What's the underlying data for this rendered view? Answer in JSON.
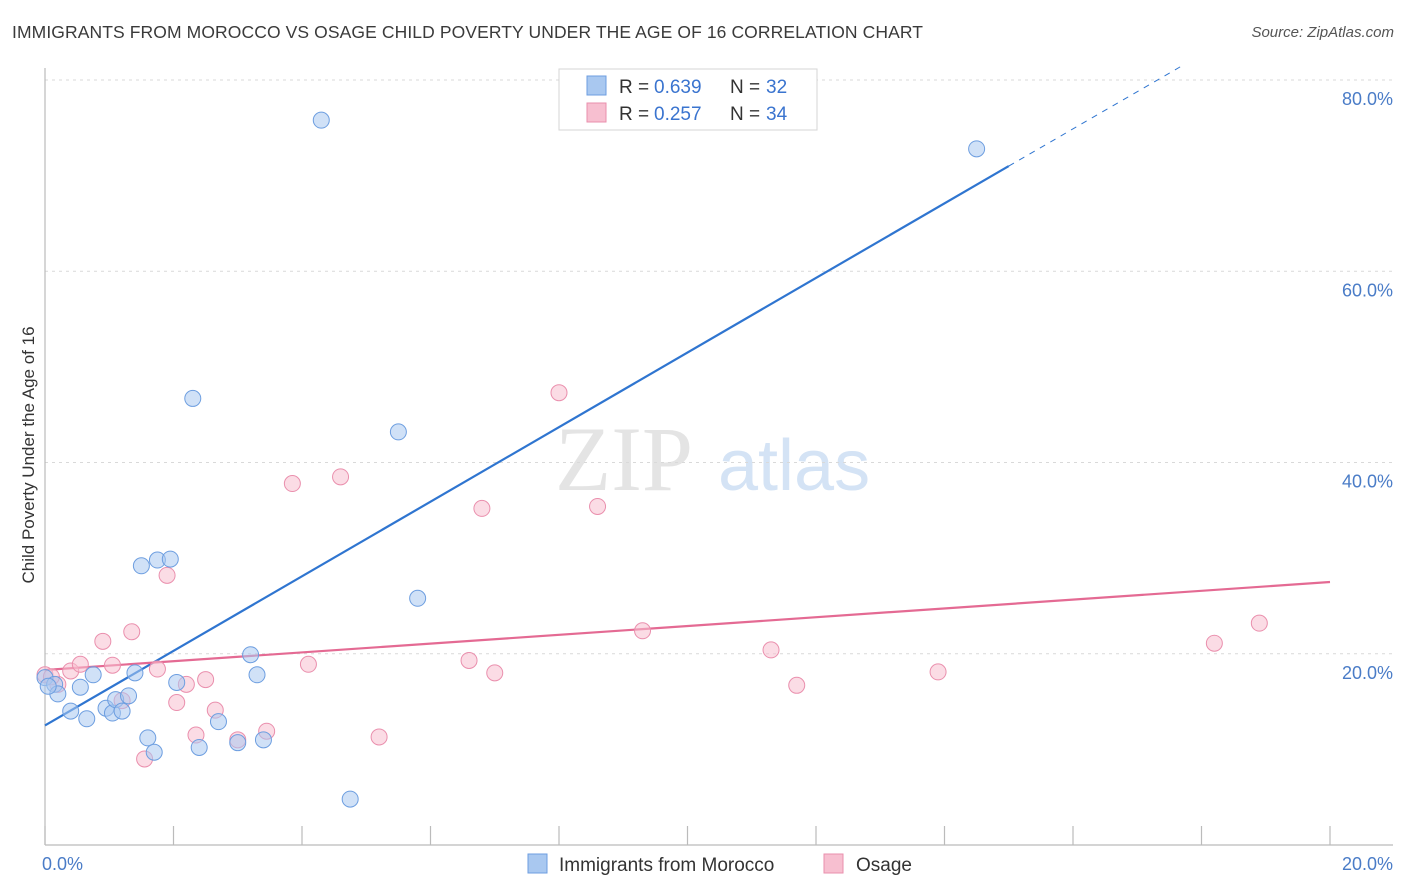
{
  "header": {
    "title": "IMMIGRANTS FROM MOROCCO VS OSAGE CHILD POVERTY UNDER THE AGE OF 16 CORRELATION CHART",
    "source": "Source: ZipAtlas.com"
  },
  "watermark": {
    "zip": "ZIP",
    "atlas": "atlas"
  },
  "colors": {
    "blue_fill": "#a9c8f0",
    "blue_stroke": "#6d9ee0",
    "blue_line": "#2f75d0",
    "pink_fill": "#f7bfd0",
    "pink_stroke": "#ea8fad",
    "pink_line": "#e46a93",
    "tick_label": "#4a7cc7",
    "grid": "#d9d9d9"
  },
  "chart_data": {
    "type": "scatter",
    "title": "IMMIGRANTS FROM MOROCCO VS OSAGE CHILD POVERTY UNDER THE AGE OF 16 CORRELATION CHART",
    "xlabel": "",
    "ylabel": "Child Poverty Under the Age of 16",
    "xlim": [
      0,
      20
    ],
    "ylim": [
      0,
      80
    ],
    "x_tick_labels": {
      "left": "0.0%",
      "right": "20.0%"
    },
    "y_ticks": [
      {
        "value": 20,
        "label": "20.0%"
      },
      {
        "value": 40,
        "label": "40.0%"
      },
      {
        "value": 60,
        "label": "60.0%"
      },
      {
        "value": 80,
        "label": "80.0%"
      }
    ],
    "grid": true,
    "legend_position": "top-center",
    "series": [
      {
        "name": "Immigrants from Morocco",
        "color": "blue",
        "R": "0.639",
        "N": "32",
        "trend": {
          "x0": 0,
          "y0": 12.5,
          "x1": 15,
          "y1": 71.0,
          "dash_to_x": 17.7,
          "dash_to_y": 81.5
        },
        "points": [
          [
            0.0,
            17.5
          ],
          [
            0.15,
            16.8
          ],
          [
            0.2,
            15.8
          ],
          [
            0.4,
            14.0
          ],
          [
            0.55,
            16.5
          ],
          [
            0.65,
            13.2
          ],
          [
            0.75,
            17.8
          ],
          [
            0.95,
            14.3
          ],
          [
            1.05,
            13.8
          ],
          [
            1.1,
            15.2
          ],
          [
            1.2,
            14.0
          ],
          [
            1.3,
            15.6
          ],
          [
            1.4,
            18.0
          ],
          [
            1.5,
            29.2
          ],
          [
            1.6,
            11.2
          ],
          [
            1.7,
            9.7
          ],
          [
            1.75,
            29.8
          ],
          [
            1.95,
            29.9
          ],
          [
            2.05,
            17.0
          ],
          [
            2.3,
            46.7
          ],
          [
            2.4,
            10.2
          ],
          [
            2.7,
            12.9
          ],
          [
            3.0,
            10.7
          ],
          [
            3.2,
            19.9
          ],
          [
            3.3,
            17.8
          ],
          [
            3.4,
            11.0
          ],
          [
            4.3,
            75.8
          ],
          [
            4.75,
            4.8
          ],
          [
            5.5,
            43.2
          ],
          [
            5.8,
            25.8
          ],
          [
            14.5,
            72.8
          ],
          [
            0.05,
            16.6
          ]
        ]
      },
      {
        "name": "Osage",
        "color": "pink",
        "R": "0.257",
        "N": "34",
        "trend": {
          "x0": 0,
          "y0": 18.3,
          "x1": 20,
          "y1": 27.5
        },
        "points": [
          [
            0.0,
            17.8
          ],
          [
            0.2,
            16.8
          ],
          [
            0.4,
            18.2
          ],
          [
            0.55,
            18.9
          ],
          [
            0.9,
            21.3
          ],
          [
            1.05,
            18.8
          ],
          [
            1.2,
            15.1
          ],
          [
            1.35,
            22.3
          ],
          [
            1.55,
            9.0
          ],
          [
            1.75,
            18.4
          ],
          [
            1.9,
            28.2
          ],
          [
            2.05,
            14.9
          ],
          [
            2.2,
            16.8
          ],
          [
            2.35,
            11.5
          ],
          [
            2.5,
            17.3
          ],
          [
            2.65,
            14.1
          ],
          [
            3.0,
            11.0
          ],
          [
            3.45,
            11.9
          ],
          [
            3.85,
            37.8
          ],
          [
            4.1,
            18.9
          ],
          [
            4.6,
            38.5
          ],
          [
            5.2,
            11.3
          ],
          [
            6.6,
            19.3
          ],
          [
            6.8,
            35.2
          ],
          [
            7.0,
            18.0
          ],
          [
            8.0,
            47.3
          ],
          [
            8.6,
            35.4
          ],
          [
            9.3,
            22.4
          ],
          [
            11.3,
            20.4
          ],
          [
            11.7,
            16.7
          ],
          [
            13.9,
            18.1
          ],
          [
            18.2,
            21.1
          ],
          [
            18.9,
            23.2
          ],
          [
            0.1,
            17.6
          ]
        ]
      }
    ]
  }
}
